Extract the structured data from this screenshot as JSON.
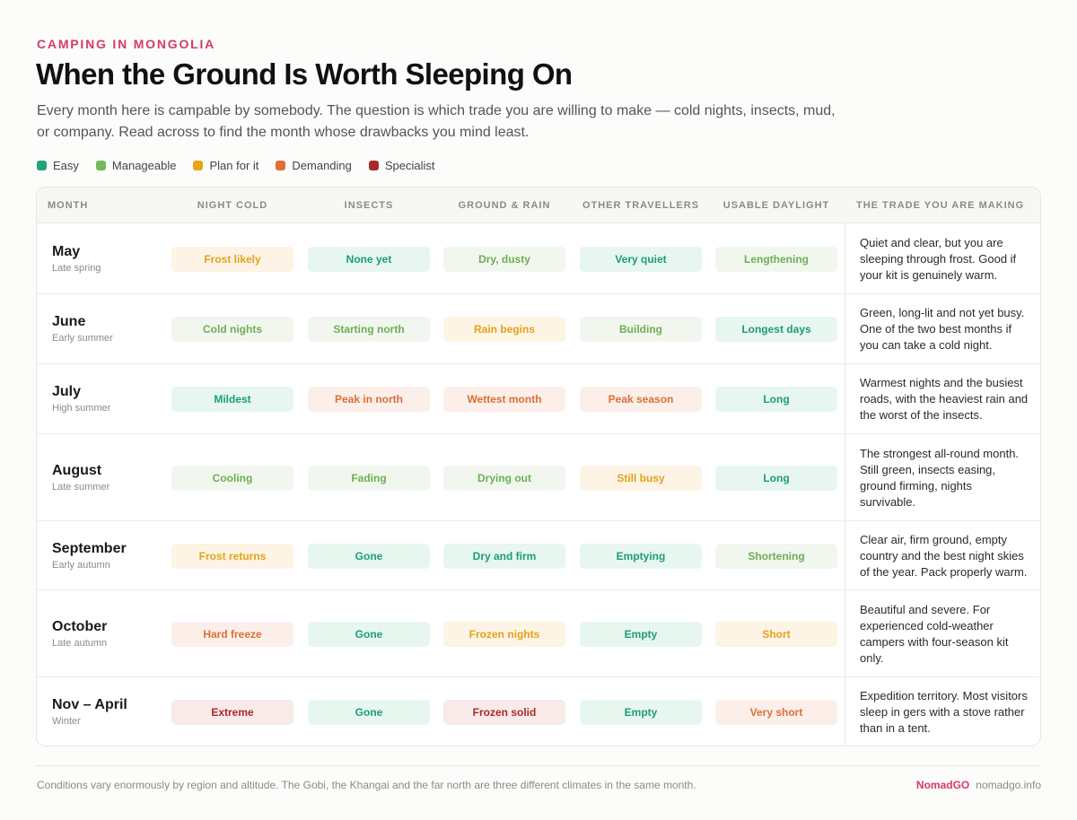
{
  "header": {
    "eyebrow": "CAMPING IN MONGOLIA",
    "title": "When the Ground Is Worth Sleeping On",
    "intro": "Every month here is campable by somebody. The question is which trade you are willing to make — cold nights, insects, mud, or company. Read across to find the month whose drawbacks you mind least."
  },
  "legend": [
    {
      "label": "Easy",
      "color": "#20a67a"
    },
    {
      "label": "Manageable",
      "color": "#74b85c"
    },
    {
      "label": "Plan for it",
      "color": "#e6a419"
    },
    {
      "label": "Demanding",
      "color": "#de6f37"
    },
    {
      "label": "Specialist",
      "color": "#a82a2a"
    }
  ],
  "columns": [
    "MONTH",
    "NIGHT COLD",
    "INSECTS",
    "GROUND & RAIN",
    "OTHER TRAVELLERS",
    "USABLE DAYLIGHT",
    "THE TRADE YOU ARE MAKING"
  ],
  "rows": [
    {
      "month": "May",
      "season": "Late spring",
      "cells": [
        {
          "text": "Frost likely",
          "level": "plan"
        },
        {
          "text": "None yet",
          "level": "easy"
        },
        {
          "text": "Dry, dusty",
          "level": "manageable"
        },
        {
          "text": "Very quiet",
          "level": "easy"
        },
        {
          "text": "Lengthening",
          "level": "manageable"
        }
      ],
      "trade": "Quiet and clear, but you are sleeping through frost. Good if your kit is genuinely warm."
    },
    {
      "month": "June",
      "season": "Early summer",
      "cells": [
        {
          "text": "Cold nights",
          "level": "manageable"
        },
        {
          "text": "Starting north",
          "level": "manageable"
        },
        {
          "text": "Rain begins",
          "level": "plan"
        },
        {
          "text": "Building",
          "level": "manageable"
        },
        {
          "text": "Longest days",
          "level": "easy"
        }
      ],
      "trade": "Green, long-lit and not yet busy. One of the two best months if you can take a cold night."
    },
    {
      "month": "July",
      "season": "High summer",
      "cells": [
        {
          "text": "Mildest",
          "level": "easy"
        },
        {
          "text": "Peak in north",
          "level": "demanding"
        },
        {
          "text": "Wettest month",
          "level": "demanding"
        },
        {
          "text": "Peak season",
          "level": "demanding"
        },
        {
          "text": "Long",
          "level": "easy"
        }
      ],
      "trade": "Warmest nights and the busiest roads, with the heaviest rain and the worst of the insects."
    },
    {
      "month": "August",
      "season": "Late summer",
      "cells": [
        {
          "text": "Cooling",
          "level": "manageable"
        },
        {
          "text": "Fading",
          "level": "manageable"
        },
        {
          "text": "Drying out",
          "level": "manageable"
        },
        {
          "text": "Still busy",
          "level": "plan"
        },
        {
          "text": "Long",
          "level": "easy"
        }
      ],
      "trade": "The strongest all-round month. Still green, insects easing, ground firming, nights survivable."
    },
    {
      "month": "September",
      "season": "Early autumn",
      "cells": [
        {
          "text": "Frost returns",
          "level": "plan"
        },
        {
          "text": "Gone",
          "level": "easy"
        },
        {
          "text": "Dry and firm",
          "level": "easy"
        },
        {
          "text": "Emptying",
          "level": "easy"
        },
        {
          "text": "Shortening",
          "level": "manageable"
        }
      ],
      "trade": "Clear air, firm ground, empty country and the best night skies of the year. Pack properly warm."
    },
    {
      "month": "October",
      "season": "Late autumn",
      "cells": [
        {
          "text": "Hard freeze",
          "level": "demanding"
        },
        {
          "text": "Gone",
          "level": "easy"
        },
        {
          "text": "Frozen nights",
          "level": "plan"
        },
        {
          "text": "Empty",
          "level": "easy"
        },
        {
          "text": "Short",
          "level": "plan"
        }
      ],
      "trade": "Beautiful and severe. For experienced cold-weather campers with four-season kit only."
    },
    {
      "month": "Nov – April",
      "season": "Winter",
      "cells": [
        {
          "text": "Extreme",
          "level": "specialist"
        },
        {
          "text": "Gone",
          "level": "easy"
        },
        {
          "text": "Frozen solid",
          "level": "specialist"
        },
        {
          "text": "Empty",
          "level": "easy"
        },
        {
          "text": "Very short",
          "level": "demanding"
        }
      ],
      "trade": "Expedition territory. Most visitors sleep in gers with a stove rather than in a tent."
    }
  ],
  "footer": {
    "note": "Conditions vary enormously by region and altitude. The Gobi, the Khangai and the far north are three different climates in the same month.",
    "brand": "NomadGO",
    "site": "nomadgo.info"
  }
}
